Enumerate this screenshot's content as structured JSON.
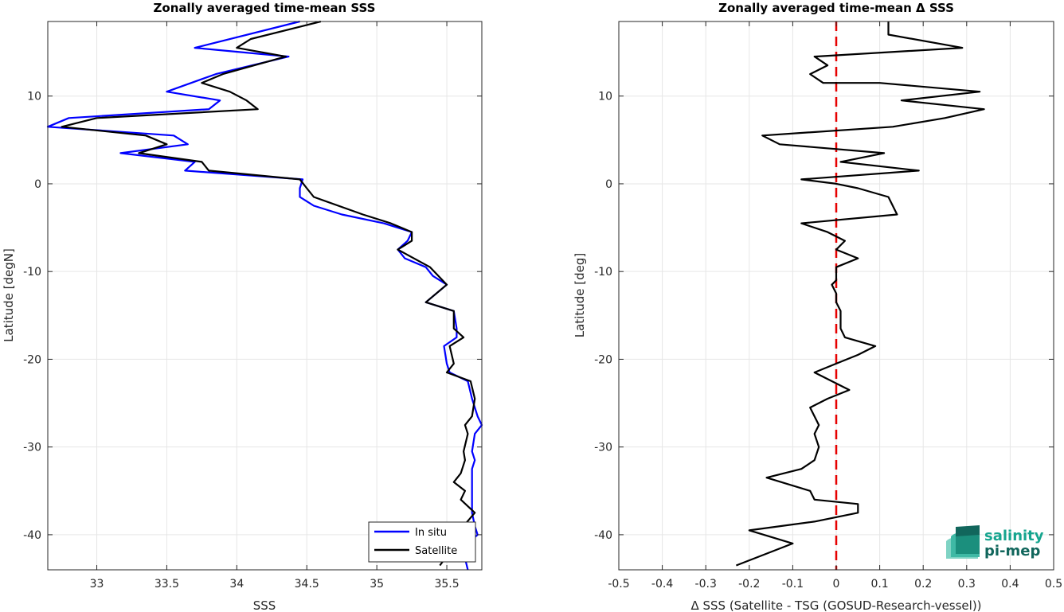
{
  "colors": {
    "in_situ": "#0000ff",
    "satellite": "#000000",
    "zero_line": "#e60000",
    "grid": "#e6e6e6",
    "logo_light": "#16a58f",
    "logo_dark": "#11665c"
  },
  "logo": {
    "line1": "salinity",
    "line2": "pi-mep",
    "icon": "wave-stack-icon"
  },
  "chart_data": [
    {
      "type": "line",
      "title": "Zonally averaged time-mean SSS",
      "xlabel": "SSS",
      "ylabel": "Latitude [degN]",
      "xlim": [
        32.65,
        35.75
      ],
      "ylim": [
        -44,
        18.5
      ],
      "xticks": [
        "33",
        "33.5",
        "34",
        "34.5",
        "35",
        "35.5"
      ],
      "yticks": [
        "10",
        "0",
        "-10",
        "-20",
        "-30",
        "-40"
      ],
      "grid": true,
      "legend": {
        "position": "bottom-right",
        "entries": [
          "In situ",
          "Satellite"
        ]
      },
      "series": [
        {
          "name": "In situ",
          "color": "#0000ff",
          "points": [
            [
              34.45,
              18.5
            ],
            [
              33.7,
              15.5
            ],
            [
              34.37,
              14.5
            ],
            [
              33.85,
              12.5
            ],
            [
              33.5,
              10.5
            ],
            [
              33.88,
              9.5
            ],
            [
              33.8,
              8.5
            ],
            [
              32.8,
              7.5
            ],
            [
              32.65,
              6.5
            ],
            [
              33.55,
              5.5
            ],
            [
              33.65,
              4.5
            ],
            [
              33.17,
              3.5
            ],
            [
              33.7,
              2.5
            ],
            [
              33.63,
              1.5
            ],
            [
              34.47,
              0.5
            ],
            [
              34.45,
              -0.5
            ],
            [
              34.45,
              -1.5
            ],
            [
              34.55,
              -2.5
            ],
            [
              34.75,
              -3.5
            ],
            [
              35.05,
              -4.5
            ],
            [
              35.25,
              -5.5
            ],
            [
              35.22,
              -6.5
            ],
            [
              35.15,
              -7.5
            ],
            [
              35.2,
              -8.5
            ],
            [
              35.35,
              -9.5
            ],
            [
              35.4,
              -10.5
            ],
            [
              35.5,
              -11.5
            ],
            [
              35.35,
              -13.5
            ],
            [
              35.55,
              -14.5
            ],
            [
              35.57,
              -16.5
            ],
            [
              35.57,
              -17.5
            ],
            [
              35.48,
              -18.5
            ],
            [
              35.5,
              -20.5
            ],
            [
              35.52,
              -21.5
            ],
            [
              35.65,
              -22.5
            ],
            [
              35.68,
              -24.5
            ],
            [
              35.72,
              -26.5
            ],
            [
              35.75,
              -27.5
            ],
            [
              35.7,
              -28.5
            ],
            [
              35.68,
              -30.5
            ],
            [
              35.7,
              -31.5
            ],
            [
              35.68,
              -32.5
            ],
            [
              35.68,
              -35.5
            ],
            [
              35.68,
              -37.5
            ],
            [
              35.7,
              -39.0
            ],
            [
              35.72,
              -40.0
            ],
            [
              35.65,
              -41.0
            ],
            [
              35.62,
              -42.0
            ],
            [
              35.65,
              -44.0
            ]
          ]
        },
        {
          "name": "Satellite",
          "color": "#000000",
          "points": [
            [
              34.6,
              18.5
            ],
            [
              34.1,
              16.5
            ],
            [
              34.0,
              15.5
            ],
            [
              34.35,
              14.5
            ],
            [
              33.9,
              12.5
            ],
            [
              33.75,
              11.5
            ],
            [
              33.95,
              10.5
            ],
            [
              34.07,
              9.5
            ],
            [
              34.15,
              8.5
            ],
            [
              33.0,
              7.5
            ],
            [
              32.75,
              6.5
            ],
            [
              33.35,
              5.5
            ],
            [
              33.5,
              4.5
            ],
            [
              33.3,
              3.5
            ],
            [
              33.75,
              2.5
            ],
            [
              33.8,
              1.5
            ],
            [
              34.45,
              0.5
            ],
            [
              34.5,
              -0.5
            ],
            [
              34.55,
              -1.5
            ],
            [
              34.9,
              -3.5
            ],
            [
              35.1,
              -4.5
            ],
            [
              35.25,
              -5.5
            ],
            [
              35.25,
              -6.5
            ],
            [
              35.15,
              -7.5
            ],
            [
              35.38,
              -9.5
            ],
            [
              35.5,
              -11.5
            ],
            [
              35.35,
              -13.5
            ],
            [
              35.55,
              -14.5
            ],
            [
              35.55,
              -16.5
            ],
            [
              35.62,
              -17.5
            ],
            [
              35.52,
              -18.5
            ],
            [
              35.55,
              -20.5
            ],
            [
              35.5,
              -21.5
            ],
            [
              35.67,
              -22.5
            ],
            [
              35.7,
              -24.5
            ],
            [
              35.68,
              -26.5
            ],
            [
              35.63,
              -27.5
            ],
            [
              35.65,
              -28.5
            ],
            [
              35.62,
              -30.5
            ],
            [
              35.63,
              -31.5
            ],
            [
              35.6,
              -33.0
            ],
            [
              35.55,
              -34.0
            ],
            [
              35.63,
              -35.0
            ],
            [
              35.6,
              -36.0
            ],
            [
              35.7,
              -37.5
            ],
            [
              35.62,
              -39.0
            ],
            [
              35.58,
              -40.5
            ],
            [
              35.52,
              -42.0
            ],
            [
              35.45,
              -43.5
            ]
          ]
        }
      ]
    },
    {
      "type": "line",
      "title": "Zonally averaged time-mean Δ SSS",
      "xlabel": "Δ SSS (Satellite - TSG (GOSUD-Research-vessel))",
      "ylabel": "Latitude [deg]",
      "xlim": [
        -0.5,
        0.5
      ],
      "ylim": [
        -44,
        18.5
      ],
      "xticks": [
        "-0.5",
        "-0.4",
        "-0.3",
        "-0.2",
        "-0.1",
        "0",
        "0.1",
        "0.2",
        "0.3",
        "0.4",
        "0.5"
      ],
      "yticks": [
        "10",
        "0",
        "-10",
        "-20",
        "-30",
        "-40"
      ],
      "grid": true,
      "reference_line": {
        "x": 0,
        "style": "dashed",
        "color": "#e60000"
      },
      "series": [
        {
          "name": "",
          "color": "#000000",
          "points": [
            [
              0.12,
              18.5
            ],
            [
              0.12,
              17.0
            ],
            [
              0.29,
              15.5
            ],
            [
              -0.05,
              14.5
            ],
            [
              -0.02,
              13.5
            ],
            [
              -0.04,
              13.0
            ],
            [
              -0.06,
              12.5
            ],
            [
              -0.03,
              11.5
            ],
            [
              0.1,
              11.5
            ],
            [
              0.33,
              10.5
            ],
            [
              0.15,
              9.5
            ],
            [
              0.34,
              8.5
            ],
            [
              0.25,
              7.5
            ],
            [
              0.13,
              6.5
            ],
            [
              -0.17,
              5.5
            ],
            [
              -0.13,
              4.5
            ],
            [
              0.11,
              3.5
            ],
            [
              0.01,
              2.5
            ],
            [
              0.19,
              1.5
            ],
            [
              -0.08,
              0.5
            ],
            [
              0.0,
              0.0
            ],
            [
              0.05,
              -0.5
            ],
            [
              0.12,
              -1.5
            ],
            [
              0.14,
              -3.5
            ],
            [
              -0.08,
              -4.5
            ],
            [
              -0.02,
              -5.5
            ],
            [
              0.02,
              -6.5
            ],
            [
              0.0,
              -7.5
            ],
            [
              0.05,
              -8.5
            ],
            [
              0.0,
              -9.5
            ],
            [
              0.0,
              -11.0
            ],
            [
              -0.01,
              -11.5
            ],
            [
              0.0,
              -12.5
            ],
            [
              0.0,
              -13.5
            ],
            [
              0.01,
              -14.5
            ],
            [
              0.01,
              -15.5
            ],
            [
              0.01,
              -16.5
            ],
            [
              0.02,
              -17.5
            ],
            [
              0.09,
              -18.5
            ],
            [
              0.05,
              -19.5
            ],
            [
              0.0,
              -20.5
            ],
            [
              -0.05,
              -21.5
            ],
            [
              0.03,
              -23.5
            ],
            [
              -0.02,
              -24.5
            ],
            [
              -0.06,
              -25.5
            ],
            [
              -0.04,
              -27.5
            ],
            [
              -0.05,
              -28.5
            ],
            [
              -0.04,
              -30.0
            ],
            [
              -0.05,
              -31.5
            ],
            [
              -0.08,
              -32.5
            ],
            [
              -0.16,
              -33.5
            ],
            [
              -0.06,
              -35.0
            ],
            [
              -0.05,
              -36.0
            ],
            [
              0.05,
              -36.5
            ],
            [
              0.05,
              -37.5
            ],
            [
              -0.05,
              -38.5
            ],
            [
              -0.2,
              -39.5
            ],
            [
              -0.1,
              -41.0
            ],
            [
              -0.23,
              -43.5
            ]
          ]
        }
      ]
    }
  ]
}
